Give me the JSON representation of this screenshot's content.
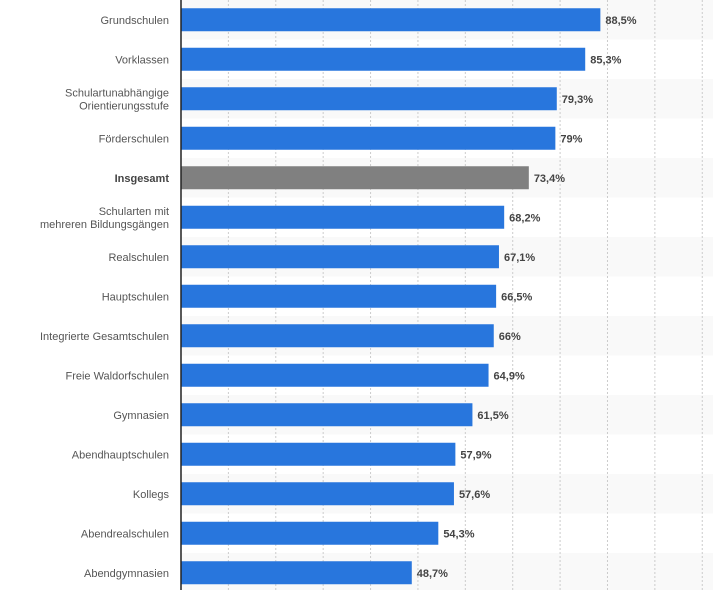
{
  "chart_data": {
    "type": "bar",
    "orientation": "horizontal",
    "title": "",
    "xlabel": "",
    "ylabel": "",
    "xlim": [
      0,
      111
    ],
    "grid": true,
    "grid_step": 10,
    "value_suffix": "%",
    "bar_color": "#2876dd",
    "highlight_color": "#808080",
    "categories": [
      [
        "Grundschulen"
      ],
      [
        "Vorklassen"
      ],
      [
        "Schulartunabhängige",
        "Orientierungsstufe"
      ],
      [
        "Förderschulen"
      ],
      [
        "Insgesamt"
      ],
      [
        "Schularten mit",
        "mehreren Bildungsgängen"
      ],
      [
        "Realschulen"
      ],
      [
        "Hauptschulen"
      ],
      [
        "Integrierte Gesamtschulen"
      ],
      [
        "Freie Waldorfschulen"
      ],
      [
        "Gymnasien"
      ],
      [
        "Abendhauptschulen"
      ],
      [
        "Kollegs"
      ],
      [
        "Abendrealschulen"
      ],
      [
        "Abendgymnasien"
      ]
    ],
    "values": [
      88.5,
      85.3,
      79.3,
      79,
      73.4,
      68.2,
      67.1,
      66.5,
      66,
      64.9,
      61.5,
      57.9,
      57.6,
      54.3,
      48.7
    ],
    "labels": [
      "88,5%",
      "85,3%",
      "79,3%",
      "79%",
      "73,4%",
      "68,2%",
      "67,1%",
      "66,5%",
      "66%",
      "64,9%",
      "61,5%",
      "57,9%",
      "57,6%",
      "54,3%",
      "48,7%"
    ],
    "highlight_index": 4
  }
}
